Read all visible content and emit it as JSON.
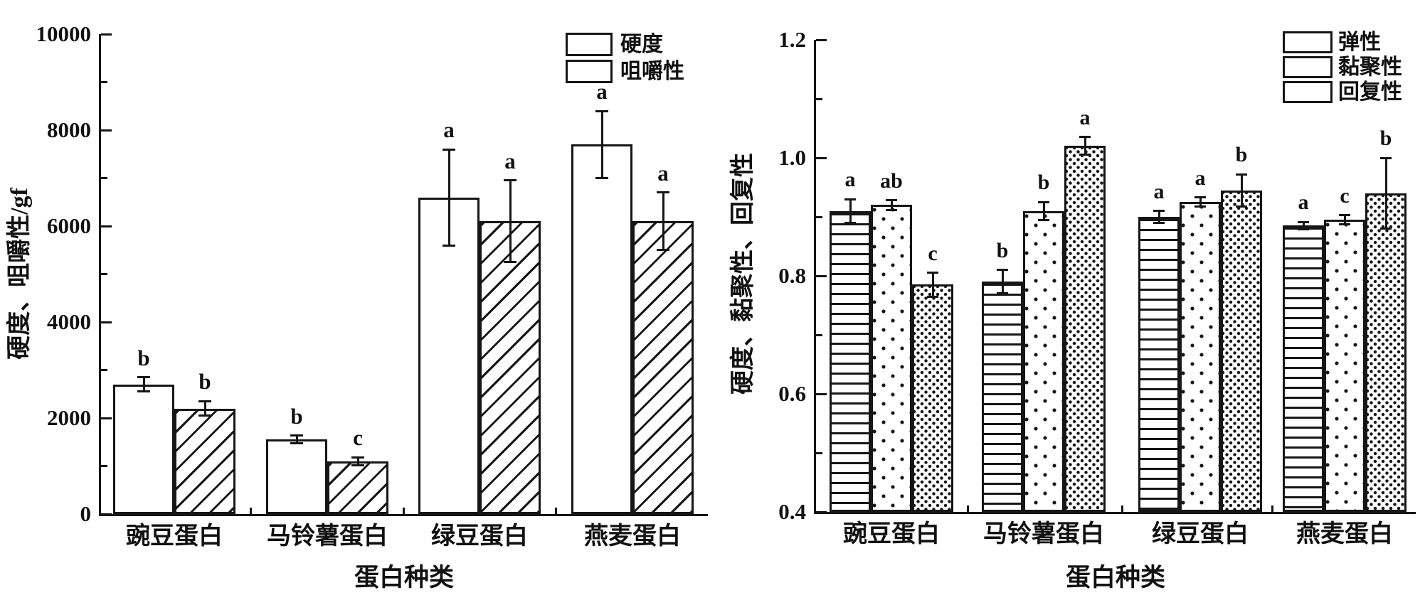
{
  "figure": {
    "background_color": "#ffffff",
    "ink_color": "#161616"
  },
  "chart_data": [
    {
      "type": "bar",
      "title": "",
      "ylabel": "硬度、咀嚼性/gf",
      "xlabel": "蛋白种类",
      "ylim": [
        0,
        10000
      ],
      "ytick_labels": [
        "0",
        "2000",
        "4000",
        "6000",
        "8000",
        "10000"
      ],
      "ytick_step": 2000,
      "yminor_step": 1000,
      "grid": "off",
      "legend_position": "top-right-inside",
      "categories": [
        "豌豆蛋白",
        "马铃薯蛋白",
        "绿豆蛋白",
        "燕麦蛋白"
      ],
      "category_keys": [
        "pea-protein",
        "potato-protein",
        "mung-bean-protein",
        "oat-protein"
      ],
      "series": [
        {
          "name": "硬度",
          "key": "hardness",
          "pattern": "plain",
          "values": [
            2700,
            1550,
            6600,
            7700
          ],
          "errors": [
            150,
            80,
            1000,
            700
          ],
          "letters": [
            "b",
            "b",
            "a",
            "a"
          ]
        },
        {
          "name": "咀嚼性",
          "key": "chewiness",
          "pattern": "diagonal-hatch",
          "values": [
            2200,
            1100,
            6100,
            6100
          ],
          "errors": [
            150,
            80,
            850,
            600
          ],
          "letters": [
            "b",
            "c",
            "a",
            "a"
          ]
        }
      ]
    },
    {
      "type": "bar",
      "title": "",
      "ylabel": "硬度、黏聚性、回复性",
      "xlabel": "蛋白种类",
      "ylim": [
        0.4,
        1.2
      ],
      "ytick_labels": [
        "0.4",
        "0.6",
        "0.8",
        "1.0",
        "1.2"
      ],
      "ytick_step": 0.2,
      "yminor_step": 0.1,
      "grid": "off",
      "legend_position": "top-right-inside",
      "categories": [
        "豌豆蛋白",
        "马铃薯蛋白",
        "绿豆蛋白",
        "燕麦蛋白"
      ],
      "category_keys": [
        "pea-protein",
        "potato-protein",
        "mung-bean-protein",
        "oat-protein"
      ],
      "series": [
        {
          "name": "弹性",
          "key": "springiness",
          "pattern": "horizontal-lines",
          "values": [
            0.91,
            0.79,
            0.9,
            0.885
          ],
          "errors": [
            0.02,
            0.02,
            0.01,
            0.006
          ],
          "letters": [
            "a",
            "b",
            "a",
            "a"
          ]
        },
        {
          "name": "黏聚性",
          "key": "cohesiveness",
          "pattern": "dots-sparse",
          "values": [
            0.92,
            0.91,
            0.925,
            0.895
          ],
          "errors": [
            0.008,
            0.015,
            0.008,
            0.008
          ],
          "letters": [
            "ab",
            "b",
            "a",
            "c"
          ]
        },
        {
          "name": "回复性",
          "key": "resilience",
          "pattern": "dots-dense",
          "values": [
            0.785,
            1.02,
            0.945,
            0.94
          ],
          "errors": [
            0.02,
            0.015,
            0.027,
            0.06
          ],
          "letters": [
            "c",
            "a",
            "b",
            "b"
          ]
        }
      ]
    }
  ]
}
